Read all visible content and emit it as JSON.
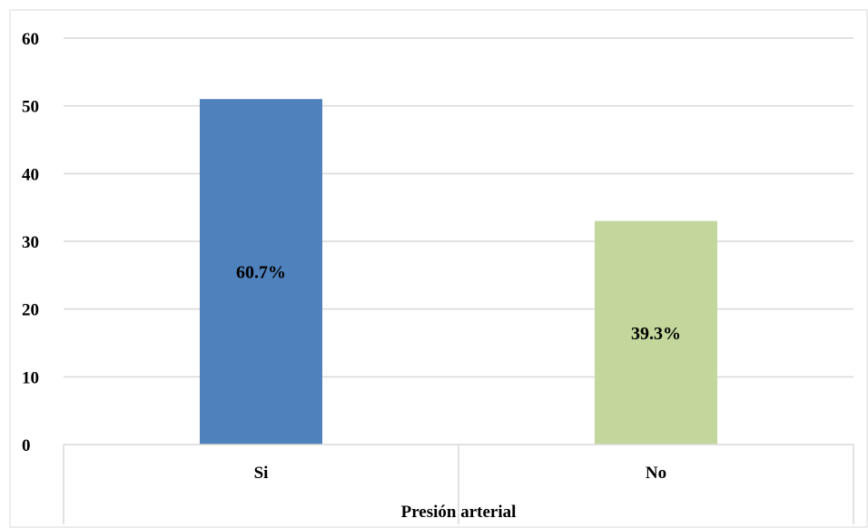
{
  "chart_data": {
    "type": "bar",
    "categories": [
      "Si",
      "No"
    ],
    "values": [
      51,
      33
    ],
    "data_labels": [
      "60.7%",
      "39.3%"
    ],
    "colors": [
      "#4f81bd",
      "#c3d69b"
    ],
    "gridline_color": "#d9d9d9",
    "title": "",
    "xlabel": "Presión arterial",
    "ylabel": "",
    "ylim": [
      0,
      60
    ],
    "yticks": [
      0,
      10,
      20,
      30,
      40,
      50,
      60
    ],
    "grid": true,
    "legend": "none"
  }
}
